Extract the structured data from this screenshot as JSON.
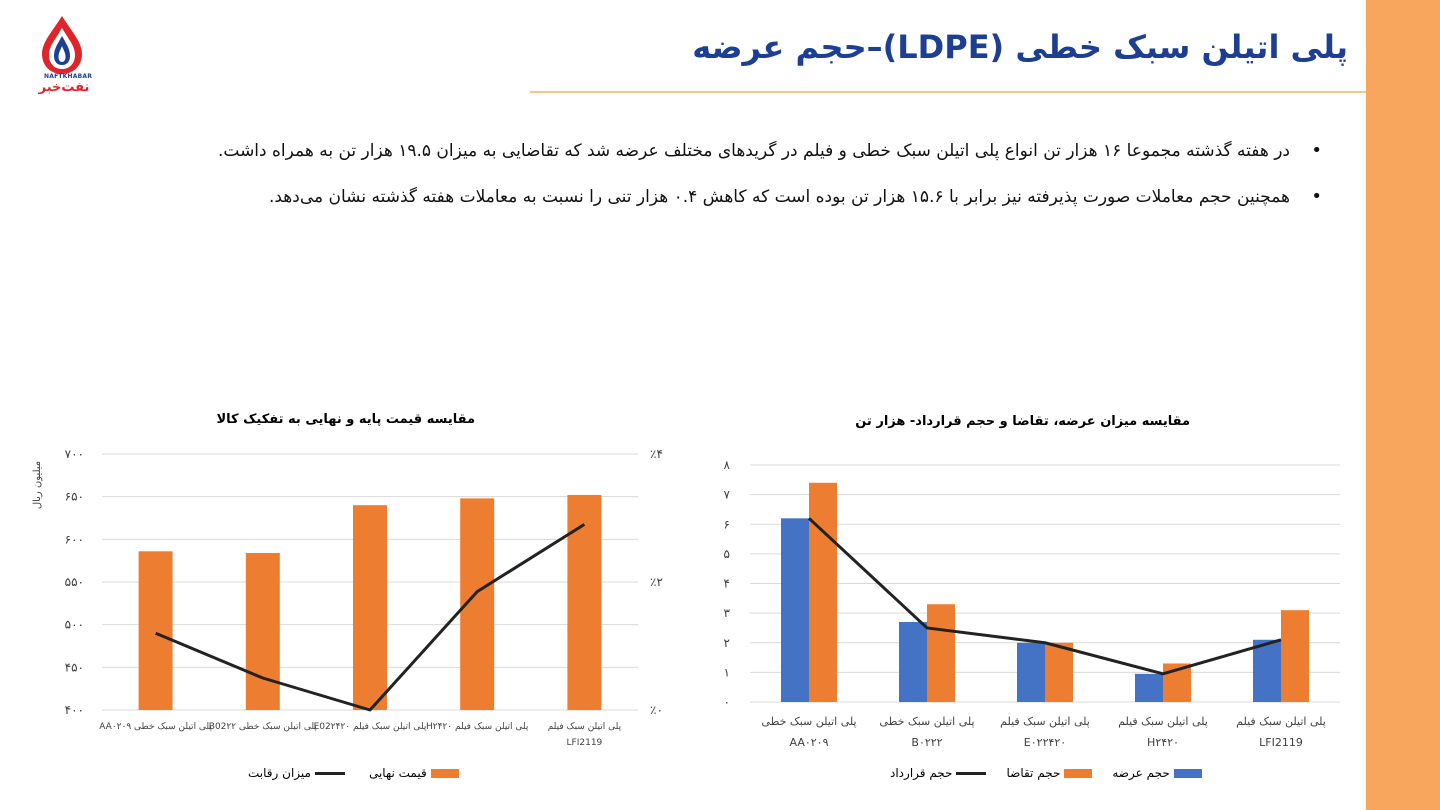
{
  "header": {
    "title": "پلی اتیلن سبک خطی (LDPE)–حجم عرضه",
    "logo_text_en": "NAFTKHABAR",
    "logo_text_fa": "نفت‌خبر"
  },
  "bullets": [
    "در هفته گذشته مجموعا ۱۶ هزار تن انواع پلی اتیلن سبک خطی و فیلم در گریدهای مختلف عرضه شد که تقاضایی به میزان ۱۹.۵ هزار تن به همراه داشت.",
    "همچنین حجم معاملات صورت پذیرفته نیز برابر با ۱۵.۶ هزار تن بوده است که کاهش ۰.۴ هزار تنی را نسبت به معاملات هفته گذشته نشان می‌دهد."
  ],
  "colors": {
    "accent": "#f8a65e",
    "title": "#1c3f94",
    "blue": "#4472c4",
    "orange": "#ed7d31",
    "line": "#222222"
  },
  "chart_data": [
    {
      "type": "bar",
      "title": "مقایسه میزان عرضه، تقاضا و حجم قرارداد-  هزار تن",
      "categories": [
        [
          "پلی اتیلن سبک خطی",
          "AA۰۲۰۹"
        ],
        [
          "پلی اتیلن سبک خطی",
          "B۰۲۲۲"
        ],
        [
          "پلی اتیلن سبک فیلم",
          "E۰۲۲۴۲۰"
        ],
        [
          "پلی اتیلن سبک فیلم",
          "H۲۴۲۰"
        ],
        [
          "پلی اتیلن سبک فیلم",
          "LFI2119"
        ]
      ],
      "ylim": [
        0,
        8
      ],
      "yticks": [
        "۰",
        "۱",
        "۲",
        "۳",
        "۴",
        "۵",
        "۶",
        "۷",
        "۸"
      ],
      "grid": true,
      "legend_position": "bottom",
      "series": [
        {
          "name": "حجم عرضه",
          "kind": "bar",
          "color": "#4472c4",
          "values": [
            6.2,
            2.7,
            2.0,
            0.95,
            2.1
          ]
        },
        {
          "name": "حجم تقاضا",
          "kind": "bar",
          "color": "#ed7d31",
          "values": [
            7.4,
            3.3,
            2.0,
            1.3,
            3.1
          ]
        },
        {
          "name": "حجم قرارداد",
          "kind": "line",
          "color": "#222222",
          "values": [
            6.2,
            2.5,
            2.0,
            0.95,
            2.1
          ]
        }
      ]
    },
    {
      "type": "bar",
      "title": "مقایسه قیمت پایه و نهایی به تفکیک کالا",
      "categories": [
        [
          "پلی اتیلن سبک خطی AA۰۲۰۹"
        ],
        [
          "پلی اتیلن سبک خطی B02۲۲"
        ],
        [
          "پلی اتیلن سبک فیلم E02۲۴۲۰"
        ],
        [
          "پلی اتیلن سبک فیلم H۲۴۲۰"
        ],
        [
          "پلی اتیلن سبک فیلم",
          "LFI2119"
        ]
      ],
      "ylabel": "میلیون ریال",
      "ylim": [
        400,
        700
      ],
      "yticks": [
        "۴۰۰",
        "۴۵۰",
        "۵۰۰",
        "۵۵۰",
        "۶۰۰",
        "۶۵۰",
        "۷۰۰"
      ],
      "y2lim": [
        0,
        4
      ],
      "y2ticks": [
        {
          "v": 0,
          "label": "٪۰"
        },
        {
          "v": 2,
          "label": "٪۲"
        },
        {
          "v": 4,
          "label": "٪۴"
        }
      ],
      "grid": true,
      "legend_position": "bottom",
      "series": [
        {
          "name": "قیمت نهایی",
          "kind": "bar",
          "axis": "left",
          "color": "#ed7d31",
          "values": [
            586,
            584,
            640,
            648,
            652
          ]
        },
        {
          "name": "میزان رقابت",
          "kind": "line",
          "axis": "right",
          "color": "#222222",
          "values": [
            1.2,
            0.5,
            0.0,
            1.85,
            2.9
          ]
        }
      ]
    }
  ]
}
